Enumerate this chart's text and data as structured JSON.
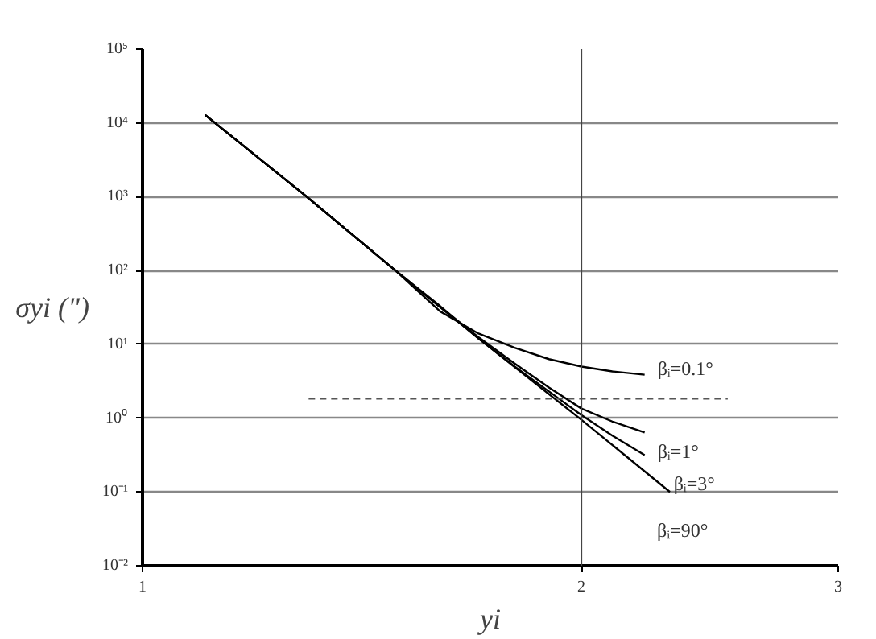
{
  "chart_data": {
    "type": "line",
    "xlabel": "yi",
    "ylabel": "σyi (\")",
    "log": "xy",
    "grid": "y",
    "ref_lines": [
      {
        "axis": "x",
        "value": 2,
        "color": "#444444"
      }
    ],
    "marker": "none",
    "line_style": "solid",
    "xlim": [
      1,
      3
    ],
    "xticks": [
      1,
      2,
      3
    ],
    "ylim": [
      0.01,
      100000
    ],
    "yticks": [
      {
        "value": 0.01,
        "label": "10⁻²"
      },
      {
        "value": 0.1,
        "label": "10⁻¹"
      },
      {
        "value": 1,
        "label": "10⁰"
      },
      {
        "value": 10,
        "label": "10¹"
      },
      {
        "value": 100,
        "label": "10²"
      },
      {
        "value": 1000,
        "label": "10³"
      },
      {
        "value": 10000,
        "label": "10⁴"
      },
      {
        "value": 100000,
        "label": "10⁵"
      }
    ],
    "series": [
      {
        "name": "βᵢ=0.1°",
        "color": "#000000",
        "x": [
          1.104,
          1.296,
          1.491,
          1.6,
          1.7,
          1.8,
          1.9,
          2.0,
          2.1,
          2.21
        ],
        "values": [
          12800,
          1000,
          100,
          28,
          14,
          9,
          6.3,
          5.0,
          4.3,
          3.87
        ]
      },
      {
        "name": "βᵢ=1°",
        "color": "#000000",
        "x": [
          1.104,
          1.296,
          1.491,
          1.6,
          1.7,
          1.8,
          1.9,
          2.0,
          2.1,
          2.21
        ],
        "values": [
          12800,
          1000,
          100,
          32,
          12.5,
          5.5,
          2.6,
          1.35,
          0.9,
          0.64
        ]
      },
      {
        "name": "βᵢ=3°",
        "color": "#000000",
        "x": [
          1.104,
          1.296,
          1.491,
          1.6,
          1.7,
          1.8,
          1.9,
          2.0,
          2.1,
          2.21
        ],
        "values": [
          12800,
          1000,
          100,
          33,
          12,
          5,
          2.3,
          1.1,
          0.58,
          0.316
        ]
      },
      {
        "name": "βᵢ=90°",
        "color": "#000000",
        "x": [
          1.104,
          1.296,
          1.491,
          1.7,
          2.0,
          2.3
        ],
        "values": [
          12800,
          1000,
          100,
          12,
          0.95,
          0.1
        ]
      },
      {
        "color": "#555555",
        "line_style": "dashed",
        "x": [
          1.3,
          2.52
        ],
        "values": [
          1.82,
          1.82
        ]
      }
    ]
  }
}
